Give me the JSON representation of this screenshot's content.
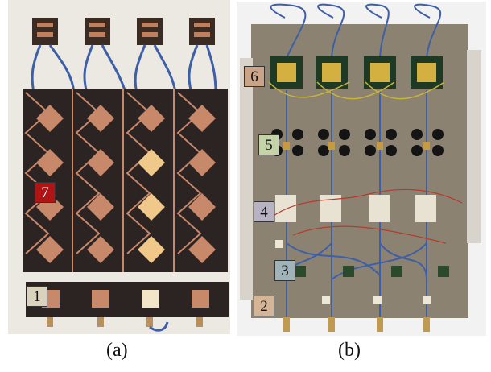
{
  "captions": {
    "a": "(a)",
    "b": "(b)"
  },
  "labels_a": [
    {
      "text": "7",
      "color": "#b01515",
      "text_color": "#ffffff"
    },
    {
      "text": "1",
      "color": "#d9d2bd",
      "text_color": "#111111"
    }
  ],
  "labels_b": [
    {
      "text": "6",
      "color": "#caa488",
      "text_color": "#111111"
    },
    {
      "text": "5",
      "color": "#c5d3a9",
      "text_color": "#111111"
    },
    {
      "text": "4",
      "color": "#b8b3c4",
      "text_color": "#111111"
    },
    {
      "text": "3",
      "color": "#9fb3b8",
      "text_color": "#111111"
    },
    {
      "text": "2",
      "color": "#d6b496",
      "text_color": "#111111"
    }
  ],
  "colors": {
    "board": "#ece9e2",
    "pcb_dark": "#2c2323",
    "copper": "#c8886a",
    "copper_bright": "#f0c88a",
    "plate": "#8c8272",
    "cable": "#3d5fa8"
  }
}
